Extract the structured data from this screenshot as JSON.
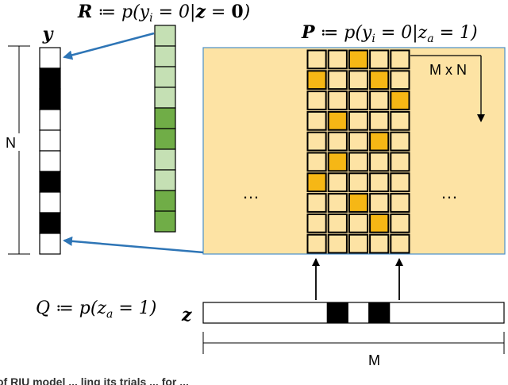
{
  "labels": {
    "y_label": "y",
    "r_equation": "R ≔ p(y_i = 0|z = 0)",
    "r_equation_parts": {
      "bold_var": "R",
      "rest_a": " ≔ p(y",
      "sub": "i",
      "rest_b": " = 0|",
      "bold_z": "z",
      "rest_c": " = ",
      "bold_zero": "0",
      "rest_d": ")"
    },
    "p_equation": "P ≔ p(y_i = 0|z_a = 1)",
    "p_equation_parts": {
      "bold_var": "P",
      "rest_a": " ≔ p(y",
      "sub_i": "i",
      "rest_b": " = 0|z",
      "sub_a": "a",
      "rest_c": " = 1)"
    },
    "q_equation": "Q ≔ p(z_a = 1)",
    "q_equation_parts": {
      "var": "Q",
      "rest_a": " ≔ p(z",
      "sub_a": "a",
      "rest_b": " = 1)"
    },
    "z_label": "z",
    "n_label": "N",
    "m_label": "M",
    "mxn_label": "M x N",
    "ellipsis_left": "…",
    "ellipsis_right": "…",
    "caption_fragment": "of RIU model ... ling its trials ... for ..."
  },
  "colors": {
    "panel_fill": "#fde3a4",
    "panel_border": "#4a90c8",
    "cell_light": "#fde3a4",
    "cell_orange": "#f6b715",
    "r_light": "#c5e0b4",
    "r_dark": "#70ad47",
    "arrow_blue": "#2e75b6",
    "black": "#000000"
  },
  "y_vector": [
    1,
    0,
    0,
    1,
    1,
    1,
    0,
    1,
    0,
    1
  ],
  "r_vector": [
    "light",
    "light",
    "light",
    "light",
    "dark",
    "dark",
    "light",
    "light",
    "dark",
    "dark"
  ],
  "p_matrix": [
    [
      0,
      0,
      1,
      0,
      0
    ],
    [
      1,
      0,
      0,
      1,
      0
    ],
    [
      0,
      0,
      0,
      0,
      1
    ],
    [
      0,
      1,
      0,
      0,
      0
    ],
    [
      0,
      0,
      0,
      1,
      0
    ],
    [
      0,
      1,
      0,
      0,
      0
    ],
    [
      1,
      0,
      0,
      0,
      0
    ],
    [
      0,
      0,
      1,
      0,
      0
    ],
    [
      0,
      0,
      0,
      1,
      0
    ],
    [
      0,
      0,
      0,
      0,
      0
    ]
  ],
  "z_active": [
    false,
    true,
    false,
    true,
    false
  ]
}
